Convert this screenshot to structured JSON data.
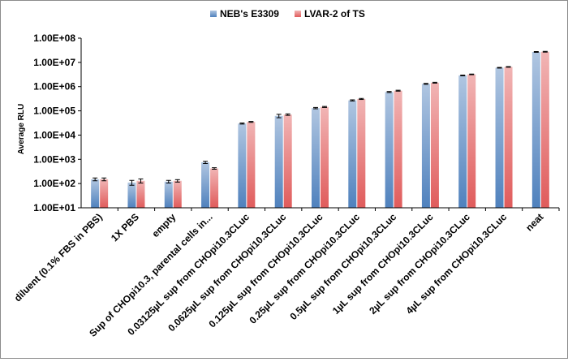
{
  "chart_data": {
    "type": "bar",
    "title": "",
    "xlabel": "",
    "ylabel": "Average RLU",
    "yscale": "log",
    "ylim": [
      10,
      100000000
    ],
    "yticks": [
      "1.00E+01",
      "1.00E+02",
      "1.00E+03",
      "1.00E+04",
      "1.00E+05",
      "1.00E+06",
      "1.00E+07",
      "1.00E+08"
    ],
    "legend_position": "top",
    "grid": false,
    "categories": [
      "diluent (0.1% FBS in PBS)",
      "1X PBS",
      "empty",
      "Sup of CHOpi10.3, parental cells in...",
      "0.03125µL sup from CHOpi10.3CLuc",
      "0.0625µL sup from CHOpi10.3CLuc",
      "0.125µL sup from CHOpi10.3CLuc",
      "0.25µL sup from CHOpi10.3CLuc",
      "0.5µL sup from CHOpi10.3CLuc",
      "1µL sup from CHOpi10.3CLuc",
      "2µL sup from CHOpi10.3CLuc",
      "4µL sup from CHOpi10.3CLuc",
      "neat"
    ],
    "series": [
      {
        "name": "NEB's E3309",
        "color": "#4f81bd",
        "values": [
          150,
          110,
          120,
          750,
          30000,
          62000,
          130000,
          270000,
          600000,
          1300000,
          2900000,
          6000000,
          27000000
        ],
        "errors": [
          20,
          25,
          15,
          80,
          1500,
          10000,
          8000,
          15000,
          30000,
          60000,
          100000,
          200000,
          1000000
        ]
      },
      {
        "name": "LVAR-2 of TS",
        "color": "#e05b5b",
        "values": [
          150,
          130,
          130,
          420,
          35000,
          70000,
          145000,
          310000,
          680000,
          1450000,
          3200000,
          6500000,
          27500000
        ],
        "errors": [
          20,
          25,
          15,
          30,
          1500,
          5000,
          7000,
          15000,
          30000,
          60000,
          100000,
          200000,
          1000000
        ]
      }
    ]
  }
}
